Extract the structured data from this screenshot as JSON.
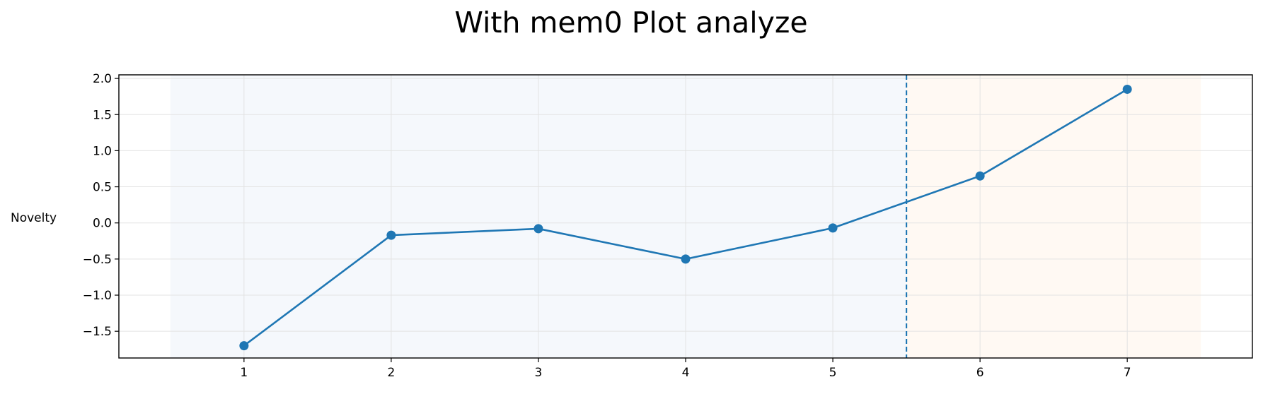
{
  "chart_data": {
    "type": "line",
    "title": "With mem0 Plot analyze",
    "ylabel": "Novelty",
    "xlabel": "",
    "x": [
      1,
      2,
      3,
      4,
      5,
      6,
      7
    ],
    "series": [
      {
        "values": [
          -1.7,
          -0.17,
          -0.08,
          -0.5,
          -0.07,
          0.65,
          1.85
        ]
      }
    ],
    "x_ticks": [
      1,
      2,
      3,
      4,
      5,
      6,
      7
    ],
    "x_tick_labels": [
      "1",
      "2",
      "3",
      "4",
      "5",
      "6",
      "7"
    ],
    "y_ticks": [
      2.0,
      1.5,
      1.0,
      0.5,
      0.0,
      -0.5,
      -1.0,
      -1.5
    ],
    "y_tick_labels": [
      "2.0",
      "1.5",
      "1.0",
      "0.5",
      "0.0",
      "−0.5",
      "−1.0",
      "−1.5"
    ],
    "xlim": [
      0.15,
      7.85
    ],
    "ylim": [
      -1.87,
      2.05
    ],
    "grid": true,
    "shaded_regions": [
      {
        "x_start": 0.5,
        "x_end": 5.5,
        "color": "#f5f8fc"
      },
      {
        "x_start": 5.5,
        "x_end": 7.5,
        "color": "#fff9f3"
      }
    ],
    "vertical_line": {
      "x": 5.5,
      "style": "dashed"
    },
    "colors": {
      "series": "#1f77b4",
      "grid": "#e3e3e3",
      "axes": "#000000"
    }
  }
}
